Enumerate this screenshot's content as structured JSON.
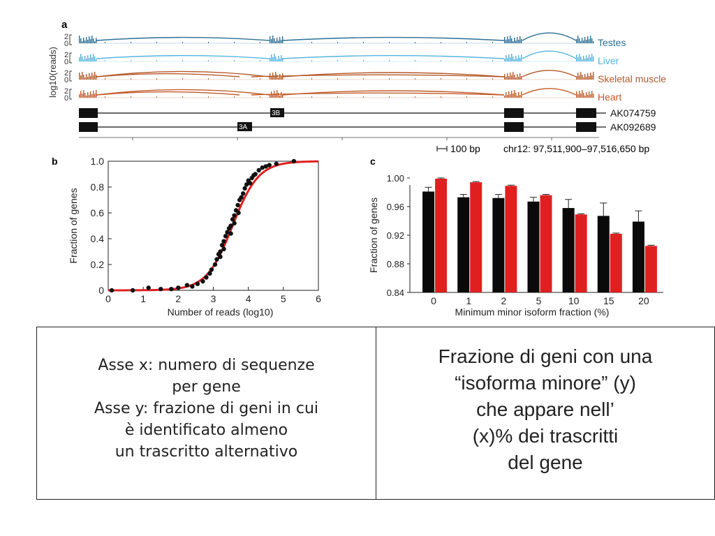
{
  "panel_a": {
    "label": "a",
    "ylabel": "log10(reads)",
    "yticks": [
      "2",
      "0"
    ],
    "tracks": [
      {
        "name": "Testes",
        "color": "#2c6e95"
      },
      {
        "name": "Liver",
        "color": "#56b4e0"
      },
      {
        "name": "Skeletal muscle",
        "color": "#b5592a"
      },
      {
        "name": "Heart",
        "color": "#c25a28"
      }
    ],
    "exon_labels": [
      "3B",
      "3A"
    ],
    "transcripts": [
      "AK074759",
      "AK092689"
    ],
    "scale_label": "100 bp",
    "coords_label": "chr12: 97,511,900–97,516,650 bp"
  },
  "chart_data": [
    {
      "panel": "b",
      "type": "scatter",
      "xlabel": "Number of reads (log10)",
      "ylabel": "Fraction of genes",
      "xlim": [
        0,
        6
      ],
      "ylim": [
        0,
        1.0
      ],
      "xticks": [
        "0",
        "1",
        "2",
        "3",
        "4",
        "5",
        "6"
      ],
      "yticks": [
        "0",
        "0.2",
        "0.4",
        "0.6",
        "0.8",
        "1.0"
      ],
      "fit_color": "#e02020",
      "point_color": "#111111",
      "points": [
        [
          0.1,
          0.0
        ],
        [
          0.7,
          0.0
        ],
        [
          1.15,
          0.02
        ],
        [
          1.5,
          0.01
        ],
        [
          1.8,
          0.01
        ],
        [
          2.0,
          0.02
        ],
        [
          2.25,
          0.04
        ],
        [
          2.4,
          0.03
        ],
        [
          2.55,
          0.05
        ],
        [
          2.7,
          0.07
        ],
        [
          2.8,
          0.1
        ],
        [
          2.9,
          0.13
        ],
        [
          2.95,
          0.16
        ],
        [
          3.05,
          0.2
        ],
        [
          3.1,
          0.24
        ],
        [
          3.15,
          0.28
        ],
        [
          3.2,
          0.3
        ],
        [
          3.25,
          0.35
        ],
        [
          3.3,
          0.38
        ],
        [
          3.35,
          0.42
        ],
        [
          3.4,
          0.45
        ],
        [
          3.45,
          0.48
        ],
        [
          3.5,
          0.5
        ],
        [
          3.55,
          0.55
        ],
        [
          3.6,
          0.58
        ],
        [
          3.65,
          0.62
        ],
        [
          3.7,
          0.66
        ],
        [
          3.72,
          0.6
        ],
        [
          3.75,
          0.7
        ],
        [
          3.8,
          0.72
        ],
        [
          3.85,
          0.75
        ],
        [
          3.9,
          0.79
        ],
        [
          3.95,
          0.82
        ],
        [
          4.0,
          0.85
        ],
        [
          4.05,
          0.83
        ],
        [
          4.1,
          0.87
        ],
        [
          4.15,
          0.89
        ],
        [
          4.2,
          0.9
        ],
        [
          4.3,
          0.93
        ],
        [
          4.4,
          0.95
        ],
        [
          4.5,
          0.96
        ],
        [
          4.6,
          0.97
        ],
        [
          4.8,
          0.98
        ],
        [
          5.3,
          1.0
        ],
        [
          3.6,
          0.52
        ],
        [
          3.5,
          0.44
        ],
        [
          3.3,
          0.32
        ],
        [
          3.2,
          0.26
        ]
      ]
    },
    {
      "panel": "c",
      "type": "bar",
      "xlabel": "Minimum minor isoform fraction (%)",
      "ylabel": "Fraction of genes",
      "ylim": [
        0.84,
        1.0
      ],
      "yticks": [
        "0.84",
        "0.88",
        "0.92",
        "0.96",
        "1.00"
      ],
      "categories": [
        "0",
        "1",
        "2",
        "5",
        "10",
        "15",
        "20"
      ],
      "series": [
        {
          "color": "#0a0a0a",
          "values": [
            0.981,
            0.973,
            0.972,
            0.967,
            0.958,
            0.947,
            0.939
          ],
          "errors": [
            0.006,
            0.004,
            0.005,
            0.006,
            0.012,
            0.018,
            0.015
          ]
        },
        {
          "color": "#e02020",
          "values": [
            0.999,
            0.994,
            0.989,
            0.976,
            0.949,
            0.922,
            0.905
          ],
          "errors": [
            0.001,
            0.001,
            0.001,
            0.001,
            0.001,
            0.001,
            0.001
          ]
        }
      ]
    }
  ],
  "caption": {
    "left_lines": [
      "Asse x: numero di sequenze",
      "per gene",
      "Asse y: frazione di geni in cui",
      "è identificato almeno",
      "un trascritto alternativo"
    ],
    "right_lines": [
      "Frazione di geni con una",
      "“isoforma minore” (y)",
      "che appare nell’",
      "(x)% dei trascritti",
      "del gene"
    ]
  }
}
